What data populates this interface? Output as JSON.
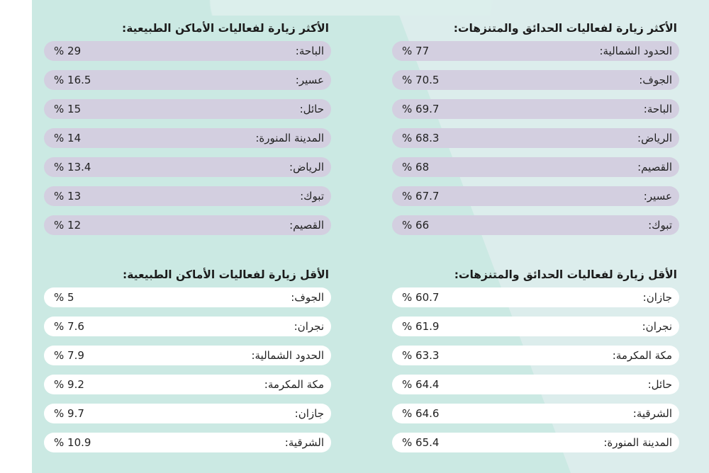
{
  "sections": {
    "parks_most": {
      "title": "الأكثر زيارة لفعاليات الحدائق والمتنزهات:",
      "rows": [
        {
          "label": "الحدود الشمالية:",
          "value": "% 77"
        },
        {
          "label": "الجوف:",
          "value": "% 70.5"
        },
        {
          "label": "الباحة:",
          "value": "% 69.7"
        },
        {
          "label": "الرياض:",
          "value": "% 68.3"
        },
        {
          "label": "القصيم:",
          "value": "% 68"
        },
        {
          "label": "عسير:",
          "value": "% 67.7"
        },
        {
          "label": "تبوك:",
          "value": "% 66"
        }
      ]
    },
    "nature_most": {
      "title": "الأكثر زيارة لفعاليات الأماكن الطبيعية:",
      "rows": [
        {
          "label": "الباحة:",
          "value": "% 29"
        },
        {
          "label": "عسير:",
          "value": "% 16.5"
        },
        {
          "label": "حائل:",
          "value": "% 15"
        },
        {
          "label": "المدينة المنورة:",
          "value": "% 14"
        },
        {
          "label": "الرياض:",
          "value": "% 13.4"
        },
        {
          "label": "تبوك:",
          "value": "% 13"
        },
        {
          "label": "القصيم:",
          "value": "% 12"
        }
      ]
    },
    "parks_least": {
      "title": "الأقل زيارة لفعاليات الحدائق والمتنزهات:",
      "rows": [
        {
          "label": "جازان:",
          "value": "% 60.7"
        },
        {
          "label": "نجران:",
          "value": "% 61.9"
        },
        {
          "label": "مكة المكرمة:",
          "value": "% 63.3"
        },
        {
          "label": "حائل:",
          "value": "% 64.4"
        },
        {
          "label": "الشرقية:",
          "value": "% 64.6"
        },
        {
          "label": "المدينة المنورة:",
          "value": "% 65.4"
        }
      ]
    },
    "nature_least": {
      "title": "الأقل زيارة لفعاليات الأماكن الطبيعية:",
      "rows": [
        {
          "label": "الجوف:",
          "value": "% 5"
        },
        {
          "label": "نجران:",
          "value": "% 7.6"
        },
        {
          "label": "الحدود الشمالية:",
          "value": "% 7.9"
        },
        {
          "label": "مكة المكرمة:",
          "value": "% 9.2"
        },
        {
          "label": "جازان:",
          "value": "% 9.7"
        },
        {
          "label": "الشرقية:",
          "value": "% 10.9"
        }
      ]
    }
  }
}
